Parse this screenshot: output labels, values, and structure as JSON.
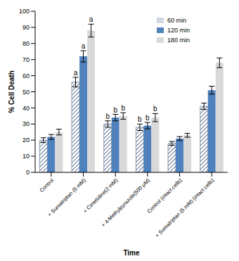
{
  "chart_data": {
    "type": "bar",
    "categories": [
      "Control",
      "+ Sumatriptan (5 mM)",
      "+ Cimetidine(2 mM)",
      "+ 4-Methylpyrazole(500 μM)",
      "Control (intact cells)",
      "+ Sumatriptan (5 mM) (intact cells)"
    ],
    "x_label": "Time",
    "y_label": "% Cell Death",
    "ylim": [
      0,
      100
    ],
    "yticks": [
      0,
      10,
      20,
      30,
      40,
      50,
      60,
      70,
      80,
      90,
      100
    ],
    "grid": false,
    "legend": "upper right",
    "series": [
      {
        "name": "60 min",
        "color": "#1f3a66",
        "values": [
          20,
          56,
          30,
          28,
          18,
          41
        ],
        "errors": [
          1.5,
          3,
          2,
          2,
          1.2,
          2
        ],
        "significance": [
          null,
          "a",
          "b",
          "b",
          null,
          null
        ]
      },
      {
        "name": "120 min",
        "color": "#4f81bd",
        "values": [
          22,
          72,
          34,
          29,
          21,
          51
        ],
        "errors": [
          1.5,
          3.5,
          2,
          2,
          1.2,
          2.5
        ],
        "significance": [
          null,
          "a",
          "b",
          "b",
          null,
          null
        ]
      },
      {
        "name": "180 min",
        "color": "#d9d9d9",
        "values": [
          25,
          88,
          35,
          34,
          23,
          68
        ],
        "errors": [
          1.8,
          4,
          2,
          2.5,
          1.2,
          3
        ],
        "significance": [
          null,
          "a",
          "b",
          "b",
          null,
          null
        ]
      }
    ]
  }
}
